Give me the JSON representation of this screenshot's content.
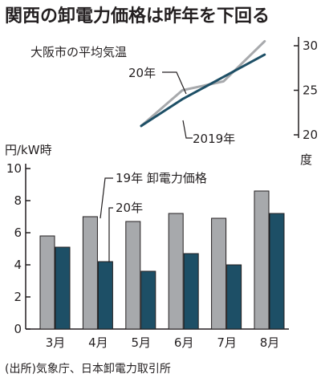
{
  "title": "関西の卸電力価格は昨年を下回る",
  "source": "(出所)気象庁、日本卸電力取引所",
  "colors": {
    "y2019": "#a7a9ac",
    "y2020": "#1d4f66",
    "ink": "#231f20"
  },
  "chart_data": [
    {
      "type": "line",
      "title": "大阪市の平均気温",
      "ylabel": "度",
      "ylim": [
        20,
        30
      ],
      "yticks": [
        20,
        25,
        30
      ],
      "x": [
        "3月",
        "4月",
        "5月",
        "6月",
        "7月",
        "8月"
      ],
      "series": [
        {
          "name": "2019年",
          "values": [
            null,
            21,
            25,
            26,
            30.5,
            null
          ]
        },
        {
          "name": "20年",
          "values": [
            null,
            21,
            24,
            26.5,
            29,
            null
          ]
        }
      ]
    },
    {
      "type": "bar",
      "ylabel": "円/kW時",
      "ylim": [
        0,
        10
      ],
      "yticks": [
        0,
        2,
        4,
        6,
        8,
        10
      ],
      "categories": [
        "3月",
        "4月",
        "5月",
        "6月",
        "7月",
        "8月"
      ],
      "series": [
        {
          "name": "19年 卸電力価格",
          "values": [
            5.8,
            7.0,
            6.7,
            7.2,
            6.9,
            8.6
          ]
        },
        {
          "name": "20年",
          "values": [
            5.1,
            4.2,
            3.6,
            4.7,
            4.0,
            7.2
          ]
        }
      ]
    }
  ]
}
